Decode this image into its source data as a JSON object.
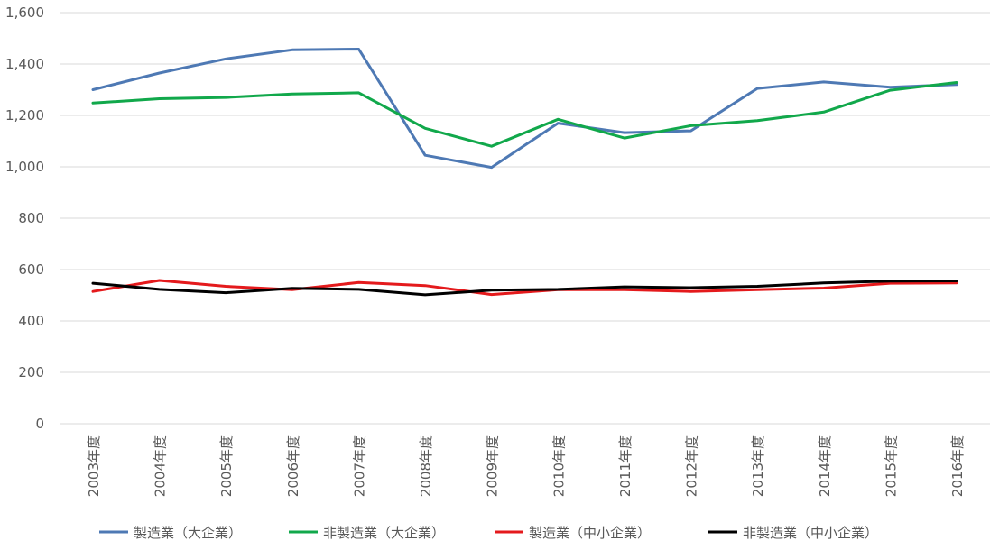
{
  "chart_data": {
    "type": "line",
    "title": "",
    "xlabel": "",
    "ylabel": "",
    "ylim": [
      0,
      1600
    ],
    "yticks": [
      0,
      200,
      400,
      600,
      800,
      1000,
      1200,
      1400,
      1600
    ],
    "ytick_labels": [
      "0",
      "200",
      "400",
      "600",
      "800",
      "1,000",
      "1,200",
      "1,400",
      "1,600"
    ],
    "grid": true,
    "legend_position": "bottom",
    "categories": [
      "2003年度",
      "2004年度",
      "2005年度",
      "2006年度",
      "2007年度",
      "2008年度",
      "2009年度",
      "2010年度",
      "2011年度",
      "2012年度",
      "2013年度",
      "2014年度",
      "2015年度",
      "2016年度"
    ],
    "series": [
      {
        "name": "製造業（大企業）",
        "color": "#4e79b4",
        "values": [
          1300,
          1365,
          1420,
          1455,
          1458,
          1045,
          998,
          1170,
          1133,
          1140,
          1305,
          1330,
          1310,
          1320
        ]
      },
      {
        "name": "非製造業（大企業）",
        "color": "#11a84b",
        "values": [
          1248,
          1265,
          1270,
          1283,
          1288,
          1150,
          1080,
          1185,
          1112,
          1160,
          1180,
          1213,
          1298,
          1328
        ]
      },
      {
        "name": "製造業（中小企業）",
        "color": "#e41a1c",
        "values": [
          515,
          558,
          535,
          522,
          550,
          538,
          503,
          522,
          522,
          515,
          522,
          528,
          547,
          548
        ]
      },
      {
        "name": "非製造業（中小企業）",
        "color": "#000000",
        "values": [
          547,
          523,
          510,
          527,
          523,
          502,
          520,
          523,
          533,
          530,
          535,
          548,
          555,
          556
        ]
      }
    ]
  }
}
